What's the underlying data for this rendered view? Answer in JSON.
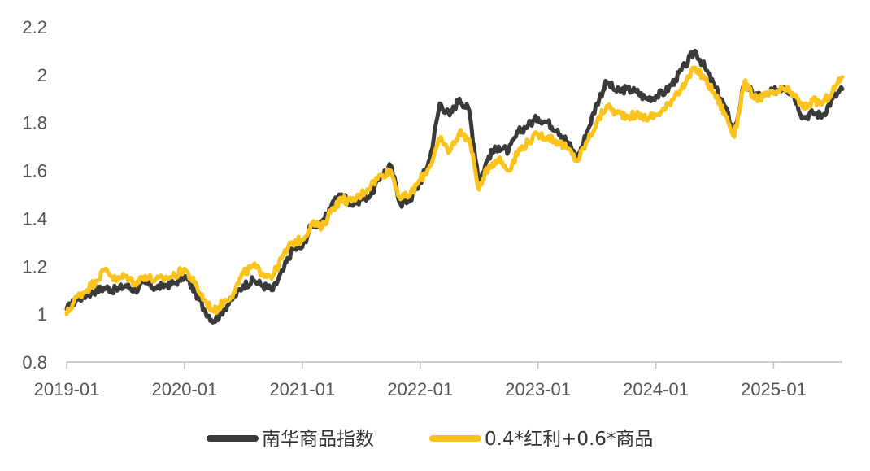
{
  "chart_data": {
    "type": "line",
    "title": "",
    "xlabel": "",
    "ylabel": "",
    "x_ticks": [
      "2019-01",
      "2020-01",
      "2021-01",
      "2022-01",
      "2023-01",
      "2024-01",
      "2025-01"
    ],
    "y_ticks": [
      "0.8",
      "1",
      "1.2",
      "1.4",
      "1.6",
      "1.8",
      "2",
      "2.2"
    ],
    "ylim": [
      0.8,
      2.2
    ],
    "xlim": [
      "2019-01",
      "2025-08"
    ],
    "grid": false,
    "legend_position": "bottom",
    "series": [
      {
        "name": "南华商品指数",
        "color": "#3a3a3a",
        "points": [
          [
            "2019-01",
            1.02
          ],
          [
            "2019-02",
            1.06
          ],
          [
            "2019-03",
            1.08
          ],
          [
            "2019-04",
            1.1
          ],
          [
            "2019-05",
            1.11
          ],
          [
            "2019-06",
            1.1
          ],
          [
            "2019-07",
            1.12
          ],
          [
            "2019-08",
            1.1
          ],
          [
            "2019-09",
            1.13
          ],
          [
            "2019-10",
            1.11
          ],
          [
            "2019-11",
            1.12
          ],
          [
            "2019-12",
            1.13
          ],
          [
            "2020-01",
            1.16
          ],
          [
            "2020-02",
            1.1
          ],
          [
            "2020-03",
            1.02
          ],
          [
            "2020-04",
            0.97
          ],
          [
            "2020-05",
            1.02
          ],
          [
            "2020-06",
            1.07
          ],
          [
            "2020-07",
            1.12
          ],
          [
            "2020-08",
            1.14
          ],
          [
            "2020-09",
            1.12
          ],
          [
            "2020-10",
            1.1
          ],
          [
            "2020-11",
            1.18
          ],
          [
            "2020-12",
            1.27
          ],
          [
            "2021-01",
            1.28
          ],
          [
            "2021-02",
            1.38
          ],
          [
            "2021-03",
            1.37
          ],
          [
            "2021-04",
            1.46
          ],
          [
            "2021-05",
            1.5
          ],
          [
            "2021-06",
            1.46
          ],
          [
            "2021-07",
            1.48
          ],
          [
            "2021-08",
            1.5
          ],
          [
            "2021-09",
            1.58
          ],
          [
            "2021-10",
            1.62
          ],
          [
            "2021-11",
            1.46
          ],
          [
            "2021-12",
            1.48
          ],
          [
            "2022-01",
            1.55
          ],
          [
            "2022-02",
            1.65
          ],
          [
            "2022-03",
            1.88
          ],
          [
            "2022-04",
            1.83
          ],
          [
            "2022-05",
            1.9
          ],
          [
            "2022-06",
            1.85
          ],
          [
            "2022-07",
            1.55
          ],
          [
            "2022-08",
            1.66
          ],
          [
            "2022-09",
            1.7
          ],
          [
            "2022-10",
            1.68
          ],
          [
            "2022-11",
            1.76
          ],
          [
            "2022-12",
            1.79
          ],
          [
            "2023-01",
            1.82
          ],
          [
            "2023-02",
            1.8
          ],
          [
            "2023-03",
            1.77
          ],
          [
            "2023-04",
            1.72
          ],
          [
            "2023-05",
            1.65
          ],
          [
            "2023-06",
            1.76
          ],
          [
            "2023-07",
            1.88
          ],
          [
            "2023-08",
            1.97
          ],
          [
            "2023-09",
            1.93
          ],
          [
            "2023-10",
            1.94
          ],
          [
            "2023-11",
            1.93
          ],
          [
            "2023-12",
            1.9
          ],
          [
            "2024-01",
            1.91
          ],
          [
            "2024-02",
            1.93
          ],
          [
            "2024-03",
            1.98
          ],
          [
            "2024-04",
            2.04
          ],
          [
            "2024-05",
            2.1
          ],
          [
            "2024-06",
            2.03
          ],
          [
            "2024-07",
            1.95
          ],
          [
            "2024-08",
            1.87
          ],
          [
            "2024-09",
            1.76
          ],
          [
            "2024-10",
            1.96
          ],
          [
            "2024-11",
            1.92
          ],
          [
            "2024-12",
            1.91
          ],
          [
            "2025-01",
            1.93
          ],
          [
            "2025-02",
            1.95
          ],
          [
            "2025-03",
            1.92
          ],
          [
            "2025-04",
            1.82
          ],
          [
            "2025-05",
            1.84
          ],
          [
            "2025-06",
            1.83
          ],
          [
            "2025-07",
            1.9
          ],
          [
            "2025-08",
            1.94
          ]
        ]
      },
      {
        "name": "0.4*红利+0.6*商品",
        "color": "#fbc31b",
        "points": [
          [
            "2019-01",
            1.0
          ],
          [
            "2019-02",
            1.07
          ],
          [
            "2019-03",
            1.1
          ],
          [
            "2019-04",
            1.14
          ],
          [
            "2019-05",
            1.19
          ],
          [
            "2019-06",
            1.14
          ],
          [
            "2019-07",
            1.16
          ],
          [
            "2019-08",
            1.13
          ],
          [
            "2019-09",
            1.16
          ],
          [
            "2019-10",
            1.14
          ],
          [
            "2019-11",
            1.15
          ],
          [
            "2019-12",
            1.16
          ],
          [
            "2020-01",
            1.19
          ],
          [
            "2020-02",
            1.13
          ],
          [
            "2020-03",
            1.06
          ],
          [
            "2020-04",
            1.01
          ],
          [
            "2020-05",
            1.05
          ],
          [
            "2020-06",
            1.09
          ],
          [
            "2020-07",
            1.17
          ],
          [
            "2020-08",
            1.2
          ],
          [
            "2020-09",
            1.17
          ],
          [
            "2020-10",
            1.16
          ],
          [
            "2020-11",
            1.24
          ],
          [
            "2020-12",
            1.3
          ],
          [
            "2021-01",
            1.31
          ],
          [
            "2021-02",
            1.38
          ],
          [
            "2021-03",
            1.36
          ],
          [
            "2021-04",
            1.44
          ],
          [
            "2021-05",
            1.48
          ],
          [
            "2021-06",
            1.47
          ],
          [
            "2021-07",
            1.5
          ],
          [
            "2021-08",
            1.54
          ],
          [
            "2021-09",
            1.58
          ],
          [
            "2021-10",
            1.6
          ],
          [
            "2021-11",
            1.48
          ],
          [
            "2021-12",
            1.5
          ],
          [
            "2022-01",
            1.56
          ],
          [
            "2022-02",
            1.62
          ],
          [
            "2022-03",
            1.73
          ],
          [
            "2022-04",
            1.68
          ],
          [
            "2022-05",
            1.76
          ],
          [
            "2022-06",
            1.73
          ],
          [
            "2022-07",
            1.52
          ],
          [
            "2022-08",
            1.62
          ],
          [
            "2022-09",
            1.65
          ],
          [
            "2022-10",
            1.6
          ],
          [
            "2022-11",
            1.68
          ],
          [
            "2022-12",
            1.72
          ],
          [
            "2023-01",
            1.75
          ],
          [
            "2023-02",
            1.74
          ],
          [
            "2023-03",
            1.72
          ],
          [
            "2023-04",
            1.69
          ],
          [
            "2023-05",
            1.64
          ],
          [
            "2023-06",
            1.72
          ],
          [
            "2023-07",
            1.8
          ],
          [
            "2023-08",
            1.87
          ],
          [
            "2023-09",
            1.84
          ],
          [
            "2023-10",
            1.83
          ],
          [
            "2023-11",
            1.83
          ],
          [
            "2023-12",
            1.82
          ],
          [
            "2024-01",
            1.83
          ],
          [
            "2024-02",
            1.86
          ],
          [
            "2024-03",
            1.92
          ],
          [
            "2024-04",
            1.96
          ],
          [
            "2024-05",
            2.03
          ],
          [
            "2024-06",
            1.98
          ],
          [
            "2024-07",
            1.92
          ],
          [
            "2024-08",
            1.84
          ],
          [
            "2024-09",
            1.74
          ],
          [
            "2024-10",
            1.97
          ],
          [
            "2024-11",
            1.9
          ],
          [
            "2024-12",
            1.91
          ],
          [
            "2025-01",
            1.92
          ],
          [
            "2025-02",
            1.94
          ],
          [
            "2025-03",
            1.92
          ],
          [
            "2025-04",
            1.86
          ],
          [
            "2025-05",
            1.89
          ],
          [
            "2025-06",
            1.88
          ],
          [
            "2025-07",
            1.93
          ],
          [
            "2025-08",
            1.99
          ]
        ]
      }
    ]
  }
}
